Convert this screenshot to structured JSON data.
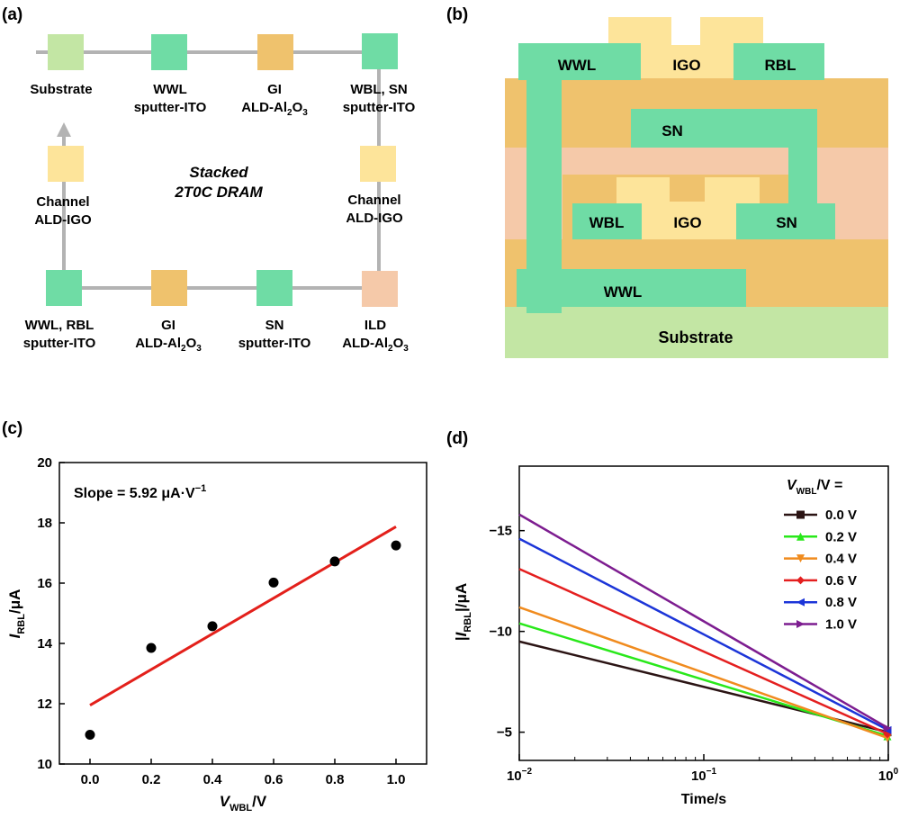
{
  "panel_labels": {
    "a": "(a)",
    "b": "(b)",
    "c": "(c)",
    "d": "(d)"
  },
  "colors": {
    "substrate": "#c3e6a4",
    "ito": "#6fdca5",
    "al2o3": "#efc26d",
    "igo": "#fde49a",
    "ild": "#f5c9a9",
    "connector": "#b3b3b3",
    "fit_line": "#e3201b"
  },
  "panel_a": {
    "center_title": {
      "line1": "Stacked",
      "line2": "2T0C DRAM"
    },
    "top_row": [
      {
        "l1": "Substrate",
        "l2": "",
        "color_key": "substrate"
      },
      {
        "l1": "WWL",
        "l2": "sputter-ITO",
        "color_key": "ito"
      },
      {
        "l1": "GI",
        "l2": "ALD-Al",
        "l2_sub": "2",
        "l2_tail": "O",
        "l2_sub2": "3",
        "color_key": "al2o3"
      },
      {
        "l1": "WBL, SN",
        "l2": "sputter-ITO",
        "color_key": "ito"
      }
    ],
    "bottom_row": [
      {
        "l1": "WWL, RBL",
        "l2": "sputter-ITO",
        "color_key": "ito"
      },
      {
        "l1": "GI",
        "l2": "ALD-Al",
        "l2_sub": "2",
        "l2_tail": "O",
        "l2_sub2": "3",
        "color_key": "al2o3"
      },
      {
        "l1": "SN",
        "l2": "sputter-ITO",
        "color_key": "ito"
      },
      {
        "l1": "ILD",
        "l2": "ALD-Al",
        "l2_sub": "2",
        "l2_tail": "O",
        "l2_sub2": "3",
        "color_key": "ild"
      }
    ],
    "left_mid": {
      "l1": "Channel",
      "l2": "ALD-IGO",
      "color_key": "igo"
    },
    "right_mid": {
      "l1": "Channel",
      "l2": "ALD-IGO",
      "color_key": "igo"
    }
  },
  "panel_b": {
    "labels": {
      "wwl_top": "WWL",
      "igo_top": "IGO",
      "rbl": "RBL",
      "sn_upper": "SN",
      "wbl": "WBL",
      "igo_mid": "IGO",
      "sn_mid": "SN",
      "wwl_bottom": "WWL",
      "substrate": "Substrate"
    }
  },
  "chart_data": [
    {
      "type": "scatter",
      "title": "",
      "annotation": {
        "text": "Slope = 5.92 μA·V",
        "sup": "−1"
      },
      "xlabel": {
        "sym": "V",
        "sub": "WBL",
        "unit": "/V"
      },
      "ylabel": {
        "sym": "I",
        "sub": "RBL",
        "unit": "/μA"
      },
      "xlim": [
        -0.1,
        1.1
      ],
      "ylim": [
        10,
        20
      ],
      "xticks": [
        0.0,
        0.2,
        0.4,
        0.6,
        0.8,
        1.0
      ],
      "xtick_labels": [
        "0.0",
        "0.2",
        "0.4",
        "0.6",
        "0.8",
        "1.0"
      ],
      "yticks": [
        10,
        12,
        14,
        16,
        18,
        20
      ],
      "ytick_labels": [
        "10",
        "12",
        "14",
        "16",
        "18",
        "20"
      ],
      "x": [
        0.0,
        0.2,
        0.4,
        0.6,
        0.8,
        1.0
      ],
      "y": [
        10.97,
        13.85,
        14.57,
        16.02,
        16.72,
        17.25
      ],
      "fit": {
        "x": [
          0.0,
          1.0
        ],
        "y": [
          11.95,
          17.87
        ],
        "slope": 5.92
      }
    },
    {
      "type": "line",
      "title": "",
      "xscale": "log",
      "xlabel": "Time/s",
      "ylabel": {
        "pre": "|",
        "sym": "I",
        "sub": "RBL",
        "unit": "|/μA"
      },
      "xlim": [
        0.01,
        1
      ],
      "ylim": [
        -3.6,
        -18.2
      ],
      "xticks": [
        0.01,
        0.1,
        1
      ],
      "xtick_labels": [
        {
          "base": "10",
          "exp": "−2"
        },
        {
          "base": "10",
          "exp": "−1"
        },
        {
          "base": "10",
          "exp": "0"
        }
      ],
      "yticks": [
        -5,
        -10,
        -15
      ],
      "ytick_labels": [
        "−5",
        "−10",
        "−15"
      ],
      "legend": {
        "position": "top-right",
        "title_sym": "V",
        "title_sub": "WBL",
        "title_tail": "/V ="
      },
      "series": [
        {
          "name": "0.0 V",
          "color": "#2b1414",
          "marker": "square",
          "x": [
            0.01,
            1
          ],
          "y": [
            -9.5,
            -5.0
          ]
        },
        {
          "name": "0.2 V",
          "color": "#29e81a",
          "marker": "triangle-up",
          "x": [
            0.01,
            1
          ],
          "y": [
            -10.4,
            -4.8
          ]
        },
        {
          "name": "0.4 V",
          "color": "#f08b1e",
          "marker": "triangle-down",
          "x": [
            0.01,
            1
          ],
          "y": [
            -11.2,
            -4.7
          ]
        },
        {
          "name": "0.6 V",
          "color": "#e41f1f",
          "marker": "diamond",
          "x": [
            0.01,
            1
          ],
          "y": [
            -13.1,
            -4.9
          ]
        },
        {
          "name": "0.8 V",
          "color": "#1c35d8",
          "marker": "triangle-left",
          "x": [
            0.01,
            1
          ],
          "y": [
            -14.6,
            -5.1
          ]
        },
        {
          "name": "1.0 V",
          "color": "#7d1d90",
          "marker": "triangle-right",
          "x": [
            0.01,
            1
          ],
          "y": [
            -15.8,
            -5.2
          ]
        }
      ]
    }
  ]
}
